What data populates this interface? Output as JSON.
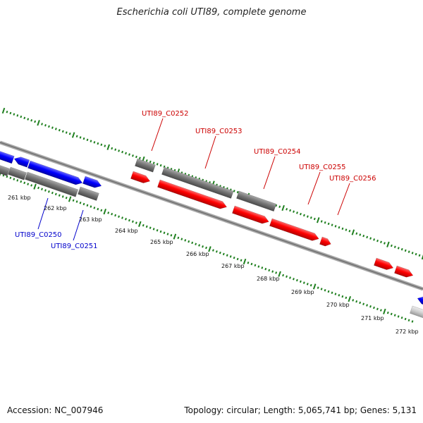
{
  "title": "Escherichia coli UTI89, complete genome",
  "footer": {
    "accession": "Accession: NC_007946",
    "topology": "Topology: circular; Length: 5,065,741 bp; Genes: 5,131"
  },
  "colors": {
    "forward_cds": "#ff0000",
    "reverse_cds": "#0000ff",
    "gene": "#777777",
    "tick": "#1f7f1f",
    "backbone": "#8a8a8a",
    "forward_label": "#cc0000",
    "reverse_label": "#0000cc"
  },
  "position_labels": [
    "261 kbp",
    "262 kbp",
    "263 kbp",
    "264 kbp",
    "265 kbp",
    "266 kbp",
    "267 kbp",
    "268 kbp",
    "269 kbp",
    "270 kbp",
    "271 kbp",
    "272 kbp"
  ],
  "gene_labels": {
    "forward": [
      "UTI89_C0252",
      "UTI89_C0253",
      "UTI89_C0254",
      "UTI89_C0255",
      "UTI89_C0256"
    ],
    "reverse": [
      "UTI89_C0250",
      "UTI89_C0251"
    ]
  }
}
